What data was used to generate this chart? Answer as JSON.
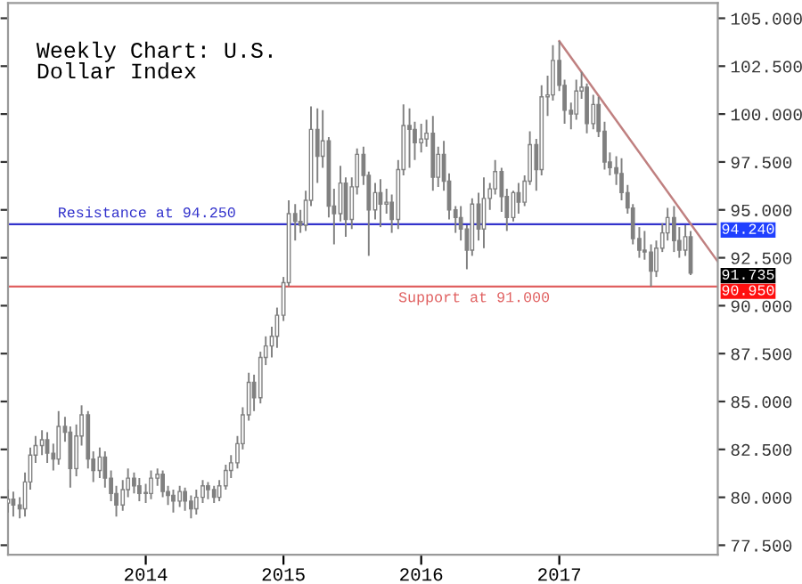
{
  "chart_data": {
    "type": "candlestick",
    "title": "Weekly Chart: U.S.\nDollar Index",
    "xlim": [
      "2013-01-01",
      "2018-02-25"
    ],
    "xticks": [
      {
        "value": "2014-01-01",
        "label": "2014"
      },
      {
        "value": "2015-01-01",
        "label": "2015"
      },
      {
        "value": "2016-01-01",
        "label": "2016"
      },
      {
        "value": "2017-01-01",
        "label": "2017"
      }
    ],
    "ylim": [
      77.0,
      105.8
    ],
    "yticks": [
      {
        "value": 77.5,
        "label": "77.500"
      },
      {
        "value": 80,
        "label": "80.000"
      },
      {
        "value": 82.5,
        "label": "82.500"
      },
      {
        "value": 85,
        "label": "85.000"
      },
      {
        "value": 87.5,
        "label": "87.500"
      },
      {
        "value": 90,
        "label": "90.000"
      },
      {
        "value": 92.5,
        "label": "92.500"
      },
      {
        "value": 95,
        "label": "95.000"
      },
      {
        "value": 97.5,
        "label": "97.500"
      },
      {
        "value": 100,
        "label": "100.000"
      },
      {
        "value": 102.5,
        "label": "102.500"
      },
      {
        "value": 105,
        "label": "105.000"
      }
    ],
    "grid": false,
    "ref_lines": [
      {
        "axis": "y",
        "value": 94.25,
        "label": "Resistance at 94.250",
        "color": "#3333cc"
      },
      {
        "axis": "y",
        "value": 91.0,
        "label": "Support at 91.000",
        "color": "#e06060"
      }
    ],
    "annotations": [
      "94.240",
      "91.735",
      "90.950"
    ],
    "series": [
      {
        "type": "candlestick",
        "color": "#808080",
        "x": [
          "2013-01-01",
          "2013-01-15",
          "2013-02-01",
          "2013-02-15",
          "2013-03-01",
          "2013-03-15",
          "2013-04-01",
          "2013-04-15",
          "2013-05-01",
          "2013-05-15",
          "2013-06-01",
          "2013-06-15",
          "2013-07-01",
          "2013-07-15",
          "2013-08-01",
          "2013-08-15",
          "2013-09-01",
          "2013-09-15",
          "2013-10-01",
          "2013-10-15",
          "2013-11-01",
          "2013-11-15",
          "2013-12-01",
          "2013-12-15",
          "2014-01-01",
          "2014-01-15",
          "2014-02-01",
          "2014-02-15",
          "2014-03-01",
          "2014-03-15",
          "2014-04-01",
          "2014-04-15",
          "2014-05-01",
          "2014-05-15",
          "2014-06-01",
          "2014-06-15",
          "2014-07-01",
          "2014-07-15",
          "2014-08-01",
          "2014-08-15",
          "2014-09-01",
          "2014-09-15",
          "2014-10-01",
          "2014-10-15",
          "2014-11-01",
          "2014-11-15",
          "2014-12-01",
          "2014-12-15",
          "2015-01-01",
          "2015-01-15",
          "2015-02-01",
          "2015-02-15",
          "2015-03-01",
          "2015-03-15",
          "2015-04-01",
          "2015-04-15",
          "2015-05-01",
          "2015-05-15",
          "2015-06-01",
          "2015-06-15",
          "2015-07-01",
          "2015-07-15",
          "2015-08-01",
          "2015-08-15",
          "2015-09-01",
          "2015-09-15",
          "2015-10-01",
          "2015-10-15",
          "2015-11-01",
          "2015-11-15",
          "2015-12-01",
          "2015-12-15",
          "2016-01-01",
          "2016-01-15",
          "2016-02-01",
          "2016-02-15",
          "2016-03-01",
          "2016-03-15",
          "2016-04-01",
          "2016-04-15",
          "2016-05-01",
          "2016-05-15",
          "2016-06-01",
          "2016-06-15",
          "2016-07-01",
          "2016-07-15",
          "2016-08-01",
          "2016-08-15",
          "2016-09-01",
          "2016-09-15",
          "2016-10-01",
          "2016-10-15",
          "2016-11-01",
          "2016-11-15",
          "2016-12-01",
          "2016-12-15",
          "2017-01-01",
          "2017-01-15",
          "2017-02-01",
          "2017-02-15",
          "2017-03-01",
          "2017-03-15",
          "2017-04-01",
          "2017-04-15",
          "2017-05-01",
          "2017-05-15",
          "2017-06-01",
          "2017-06-15",
          "2017-07-01",
          "2017-07-15",
          "2017-08-01",
          "2017-08-15",
          "2017-09-01",
          "2017-09-15",
          "2017-10-01",
          "2017-10-15",
          "2017-11-01",
          "2017-11-15",
          "2017-12-01",
          "2017-12-15"
        ],
        "ohlc": [
          [
            79.7,
            80.4,
            79.2,
            79.9
          ],
          [
            79.9,
            80.3,
            79.0,
            79.6
          ],
          [
            79.6,
            80.0,
            78.9,
            79.4
          ],
          [
            79.4,
            81.3,
            79.0,
            80.8
          ],
          [
            80.8,
            82.6,
            80.4,
            82.2
          ],
          [
            82.2,
            83.2,
            81.8,
            82.7
          ],
          [
            82.7,
            83.5,
            82.2,
            83.0
          ],
          [
            83.0,
            83.4,
            81.8,
            82.3
          ],
          [
            82.3,
            82.8,
            81.4,
            82.0
          ],
          [
            82.0,
            84.5,
            81.7,
            83.7
          ],
          [
            83.7,
            84.2,
            82.9,
            83.4
          ],
          [
            83.4,
            83.7,
            80.5,
            81.5
          ],
          [
            81.5,
            83.8,
            81.1,
            83.2
          ],
          [
            83.2,
            84.8,
            82.7,
            84.3
          ],
          [
            84.3,
            84.5,
            81.5,
            82.0
          ],
          [
            82.0,
            82.4,
            80.8,
            81.4
          ],
          [
            81.4,
            82.6,
            81.0,
            82.1
          ],
          [
            82.1,
            82.4,
            80.5,
            81.0
          ],
          [
            81.0,
            81.4,
            79.8,
            80.2
          ],
          [
            80.2,
            80.6,
            79.0,
            79.6
          ],
          [
            79.6,
            80.9,
            79.3,
            80.4
          ],
          [
            80.4,
            81.5,
            80.0,
            81.0
          ],
          [
            81.0,
            81.3,
            80.2,
            80.6
          ],
          [
            80.6,
            81.0,
            79.8,
            80.2
          ],
          [
            80.2,
            80.7,
            79.7,
            80.2
          ],
          [
            80.2,
            81.4,
            79.9,
            81.0
          ],
          [
            81.0,
            81.5,
            80.6,
            81.2
          ],
          [
            81.2,
            81.4,
            80.0,
            80.3
          ],
          [
            80.3,
            80.6,
            79.6,
            80.1
          ],
          [
            80.1,
            80.4,
            79.2,
            79.8
          ],
          [
            79.8,
            80.6,
            79.5,
            80.3
          ],
          [
            80.3,
            80.5,
            79.3,
            79.8
          ],
          [
            79.8,
            80.1,
            78.9,
            79.4
          ],
          [
            79.4,
            80.4,
            79.1,
            80.0
          ],
          [
            80.0,
            80.9,
            79.7,
            80.6
          ],
          [
            80.6,
            80.8,
            79.9,
            80.4
          ],
          [
            80.4,
            80.6,
            79.7,
            80.0
          ],
          [
            80.0,
            80.9,
            79.8,
            80.6
          ],
          [
            80.6,
            81.7,
            80.4,
            81.4
          ],
          [
            81.4,
            82.2,
            81.0,
            81.8
          ],
          [
            81.8,
            83.2,
            81.5,
            82.8
          ],
          [
            82.8,
            84.7,
            82.5,
            84.3
          ],
          [
            84.3,
            86.5,
            84.0,
            86.0
          ],
          [
            86.0,
            86.4,
            84.5,
            85.2
          ],
          [
            85.2,
            87.6,
            84.9,
            87.3
          ],
          [
            87.3,
            88.4,
            86.9,
            87.9
          ],
          [
            87.9,
            88.9,
            87.3,
            88.4
          ],
          [
            88.4,
            89.9,
            87.8,
            89.5
          ],
          [
            89.5,
            91.5,
            89.2,
            91.2
          ],
          [
            91.2,
            95.5,
            91.0,
            94.8
          ],
          [
            94.8,
            95.3,
            93.4,
            94.4
          ],
          [
            94.4,
            95.0,
            93.8,
            94.2
          ],
          [
            94.2,
            96.0,
            93.9,
            95.5
          ],
          [
            95.5,
            100.4,
            95.2,
            99.2
          ],
          [
            99.2,
            100.3,
            96.4,
            97.8
          ],
          [
            97.8,
            100.2,
            97.2,
            98.6
          ],
          [
            98.6,
            98.8,
            94.6,
            95.2
          ],
          [
            95.2,
            96.1,
            93.2,
            94.8
          ],
          [
            94.8,
            97.3,
            94.4,
            96.4
          ],
          [
            96.4,
            96.7,
            93.6,
            94.5
          ],
          [
            94.5,
            96.7,
            94.0,
            96.2
          ],
          [
            96.2,
            98.2,
            95.8,
            97.9
          ],
          [
            97.9,
            98.3,
            96.3,
            96.8
          ],
          [
            96.8,
            97.0,
            92.6,
            95.0
          ],
          [
            95.0,
            96.4,
            94.5,
            95.9
          ],
          [
            95.9,
            96.6,
            94.1,
            95.3
          ],
          [
            95.3,
            96.1,
            94.8,
            95.4
          ],
          [
            95.4,
            95.8,
            93.8,
            94.5
          ],
          [
            94.5,
            97.6,
            94.0,
            97.1
          ],
          [
            97.1,
            100.5,
            96.8,
            99.4
          ],
          [
            99.4,
            100.3,
            97.2,
            99.2
          ],
          [
            99.2,
            99.6,
            97.6,
            98.5
          ],
          [
            98.5,
            99.5,
            98.0,
            98.7
          ],
          [
            98.7,
            99.7,
            98.3,
            99.0
          ],
          [
            99.0,
            99.9,
            96.0,
            96.7
          ],
          [
            96.7,
            98.3,
            96.2,
            97.9
          ],
          [
            97.9,
            98.6,
            96.0,
            96.5
          ],
          [
            96.5,
            96.9,
            94.5,
            95.0
          ],
          [
            95.0,
            95.2,
            93.8,
            94.6
          ],
          [
            94.6,
            95.2,
            93.4,
            94.0
          ],
          [
            94.0,
            94.2,
            91.9,
            92.9
          ],
          [
            92.9,
            95.6,
            92.6,
            95.3
          ],
          [
            95.3,
            95.9,
            93.4,
            94.0
          ],
          [
            94.0,
            96.7,
            93.0,
            95.6
          ],
          [
            95.6,
            96.4,
            95.0,
            96.1
          ],
          [
            96.1,
            97.6,
            95.8,
            97.0
          ],
          [
            97.0,
            97.2,
            94.9,
            95.7
          ],
          [
            95.7,
            96.1,
            93.9,
            94.6
          ],
          [
            94.6,
            96.0,
            94.4,
            95.9
          ],
          [
            95.9,
            96.4,
            94.8,
            95.4
          ],
          [
            95.4,
            96.8,
            95.2,
            96.5
          ],
          [
            96.5,
            99.1,
            96.3,
            98.4
          ],
          [
            98.4,
            98.7,
            96.0,
            97.1
          ],
          [
            97.1,
            101.5,
            96.8,
            100.9
          ],
          [
            100.9,
            102.0,
            99.9,
            101.0
          ],
          [
            101.0,
            103.6,
            100.7,
            102.8
          ],
          [
            102.8,
            103.8,
            101.2,
            101.5
          ],
          [
            101.5,
            101.8,
            99.5,
            100.2
          ],
          [
            100.2,
            100.6,
            99.2,
            100.0
          ],
          [
            100.0,
            101.8,
            99.7,
            101.2
          ],
          [
            101.2,
            102.2,
            100.8,
            101.4
          ],
          [
            101.4,
            101.6,
            99.0,
            99.5
          ],
          [
            99.5,
            101.0,
            99.2,
            100.5
          ],
          [
            100.5,
            100.9,
            98.8,
            99.1
          ],
          [
            99.1,
            99.6,
            97.1,
            97.5
          ],
          [
            97.5,
            98.0,
            96.8,
            97.2
          ],
          [
            97.2,
            97.8,
            96.3,
            96.9
          ],
          [
            96.9,
            97.7,
            95.5,
            95.9
          ],
          [
            95.9,
            96.3,
            94.8,
            95.1
          ],
          [
            95.1,
            95.3,
            93.2,
            93.5
          ],
          [
            93.5,
            94.1,
            92.5,
            92.9
          ],
          [
            92.9,
            93.9,
            92.4,
            92.8
          ],
          [
            92.8,
            93.2,
            91.0,
            91.8
          ],
          [
            91.8,
            93.4,
            91.5,
            93.0
          ],
          [
            93.0,
            94.3,
            92.8,
            93.8
          ],
          [
            93.8,
            95.1,
            93.4,
            94.6
          ],
          [
            94.6,
            95.2,
            92.8,
            93.4
          ],
          [
            93.4,
            94.1,
            92.5,
            92.9
          ],
          [
            92.9,
            94.2,
            92.6,
            93.6
          ],
          [
            93.6,
            93.9,
            91.6,
            91.7
          ]
        ]
      },
      {
        "type": "line",
        "color": "#c08080",
        "x": [
          "2017-01-01",
          "2018-02-25"
        ],
        "values": [
          103.8,
          92.3
        ]
      }
    ]
  }
}
